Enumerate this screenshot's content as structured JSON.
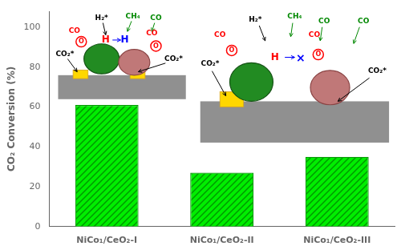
{
  "chart_data": {
    "type": "bar",
    "categories": [
      "NiCo₁/CeO₂-I",
      "NiCo₁/CeO₂-II",
      "NiCo₁/CeO₂-III"
    ],
    "values": [
      61.0,
      27.0,
      35.0
    ],
    "color": "#00EE00",
    "ylabel": "CO₂ Conversion (%)",
    "ylim": [
      0,
      108
    ],
    "yticks": [
      0,
      20,
      40,
      60,
      80,
      100
    ],
    "grid": false,
    "annotations": [
      [
        "CO₂*",
        "CO₂*",
        "O",
        "CO",
        "O",
        "CO",
        "H",
        "H",
        "H₂*",
        "CH₄",
        "CO"
      ],
      [
        "CO₂*",
        "CO₂*",
        "O",
        "O",
        "CO",
        "CO",
        "H",
        "×",
        "H₂*",
        "CH₄",
        "CO",
        "CO"
      ]
    ]
  }
}
